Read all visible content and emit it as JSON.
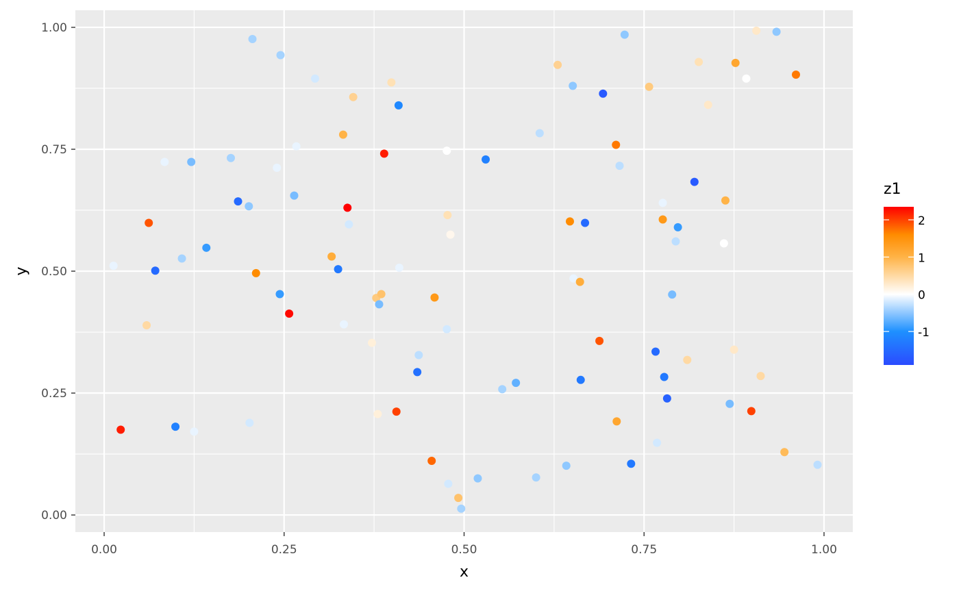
{
  "chart_data": {
    "type": "scatter",
    "xlabel": "x",
    "ylabel": "y",
    "xlim": [
      -0.04,
      1.04
    ],
    "ylim": [
      -0.035,
      1.035
    ],
    "x_ticks": [
      0,
      0.25,
      0.5,
      0.75,
      1
    ],
    "x_tick_labels": [
      "0.00",
      "0.25",
      "0.50",
      "0.75",
      "1.00"
    ],
    "y_ticks": [
      0,
      0.25,
      0.5,
      0.75,
      1
    ],
    "y_tick_labels": [
      "0.00",
      "0.25",
      "0.50",
      "0.75",
      "1.00"
    ],
    "grid": true,
    "panel_background": "#ebebeb",
    "grid_color": "#ffffff",
    "legend": {
      "title": "z1",
      "position": "right",
      "range": [
        -1.9,
        2.35
      ],
      "breaks": [
        2,
        1,
        0,
        -1
      ],
      "labels": [
        "2",
        "1",
        "0",
        "-1"
      ],
      "color_stops": [
        {
          "value": -1.9,
          "color": "#2b4bff"
        },
        {
          "value": -1.0,
          "color": "#1e90ff"
        },
        {
          "value": 0.0,
          "color": "#ffffff"
        },
        {
          "value": 1.0,
          "color": "#ffb347"
        },
        {
          "value": 1.6,
          "color": "#ff8c00"
        },
        {
          "value": 2.35,
          "color": "#ff0000"
        }
      ]
    },
    "points": [
      {
        "x": 0.013,
        "y": 0.511,
        "z": -0.1
      },
      {
        "x": 0.023,
        "y": 0.175,
        "z": 2.2
      },
      {
        "x": 0.059,
        "y": 0.389,
        "z": 0.5
      },
      {
        "x": 0.062,
        "y": 0.599,
        "z": 1.9
      },
      {
        "x": 0.071,
        "y": 0.501,
        "z": -1.5
      },
      {
        "x": 0.084,
        "y": 0.724,
        "z": -0.1
      },
      {
        "x": 0.099,
        "y": 0.181,
        "z": -1.2
      },
      {
        "x": 0.108,
        "y": 0.526,
        "z": -0.4
      },
      {
        "x": 0.121,
        "y": 0.724,
        "z": -0.6
      },
      {
        "x": 0.125,
        "y": 0.171,
        "z": -0.1
      },
      {
        "x": 0.142,
        "y": 0.548,
        "z": -0.9
      },
      {
        "x": 0.176,
        "y": 0.732,
        "z": -0.4
      },
      {
        "x": 0.186,
        "y": 0.643,
        "z": -1.5
      },
      {
        "x": 0.201,
        "y": 0.633,
        "z": -0.5
      },
      {
        "x": 0.202,
        "y": 0.189,
        "z": -0.2
      },
      {
        "x": 0.206,
        "y": 0.976,
        "z": -0.4
      },
      {
        "x": 0.211,
        "y": 0.496,
        "z": 1.6
      },
      {
        "x": 0.24,
        "y": 0.712,
        "z": -0.1
      },
      {
        "x": 0.244,
        "y": 0.453,
        "z": -0.9
      },
      {
        "x": 0.245,
        "y": 0.943,
        "z": -0.4
      },
      {
        "x": 0.257,
        "y": 0.413,
        "z": 2.3
      },
      {
        "x": 0.264,
        "y": 0.655,
        "z": -0.6
      },
      {
        "x": 0.267,
        "y": 0.756,
        "z": -0.1
      },
      {
        "x": 0.293,
        "y": 0.895,
        "z": -0.2
      },
      {
        "x": 0.316,
        "y": 0.53,
        "z": 1.1
      },
      {
        "x": 0.325,
        "y": 0.504,
        "z": -1.3
      },
      {
        "x": 0.332,
        "y": 0.78,
        "z": 1.0
      },
      {
        "x": 0.333,
        "y": 0.391,
        "z": -0.1
      },
      {
        "x": 0.338,
        "y": 0.63,
        "z": 2.35
      },
      {
        "x": 0.34,
        "y": 0.596,
        "z": -0.2
      },
      {
        "x": 0.346,
        "y": 0.857,
        "z": 0.6
      },
      {
        "x": 0.372,
        "y": 0.353,
        "z": 0.2
      },
      {
        "x": 0.378,
        "y": 0.445,
        "z": 0.7
      },
      {
        "x": 0.38,
        "y": 0.207,
        "z": 0.2
      },
      {
        "x": 0.382,
        "y": 0.432,
        "z": -0.6
      },
      {
        "x": 0.385,
        "y": 0.453,
        "z": 0.8
      },
      {
        "x": 0.389,
        "y": 0.741,
        "z": 2.2
      },
      {
        "x": 0.399,
        "y": 0.887,
        "z": 0.4
      },
      {
        "x": 0.406,
        "y": 0.212,
        "z": 2.0
      },
      {
        "x": 0.409,
        "y": 0.84,
        "z": -1.1
      },
      {
        "x": 0.41,
        "y": 0.507,
        "z": -0.1
      },
      {
        "x": 0.435,
        "y": 0.293,
        "z": -1.4
      },
      {
        "x": 0.437,
        "y": 0.328,
        "z": -0.3
      },
      {
        "x": 0.455,
        "y": 0.111,
        "z": 1.8
      },
      {
        "x": 0.459,
        "y": 0.446,
        "z": 1.4
      },
      {
        "x": 0.476,
        "y": 0.747,
        "z": 0.0
      },
      {
        "x": 0.476,
        "y": 0.381,
        "z": -0.2
      },
      {
        "x": 0.477,
        "y": 0.615,
        "z": 0.4
      },
      {
        "x": 0.478,
        "y": 0.064,
        "z": -0.2
      },
      {
        "x": 0.481,
        "y": 0.575,
        "z": 0.1
      },
      {
        "x": 0.492,
        "y": 0.035,
        "z": 0.8
      },
      {
        "x": 0.496,
        "y": 0.013,
        "z": -0.4
      },
      {
        "x": 0.519,
        "y": 0.075,
        "z": -0.5
      },
      {
        "x": 0.53,
        "y": 0.729,
        "z": -1.2
      },
      {
        "x": 0.553,
        "y": 0.258,
        "z": -0.4
      },
      {
        "x": 0.572,
        "y": 0.271,
        "z": -0.7
      },
      {
        "x": 0.6,
        "y": 0.077,
        "z": -0.4
      },
      {
        "x": 0.605,
        "y": 0.783,
        "z": -0.3
      },
      {
        "x": 0.63,
        "y": 0.923,
        "z": 0.6
      },
      {
        "x": 0.642,
        "y": 0.101,
        "z": -0.5
      },
      {
        "x": 0.647,
        "y": 0.602,
        "z": 1.6
      },
      {
        "x": 0.651,
        "y": 0.88,
        "z": -0.5
      },
      {
        "x": 0.652,
        "y": 0.485,
        "z": -0.1
      },
      {
        "x": 0.661,
        "y": 0.478,
        "z": 1.1
      },
      {
        "x": 0.662,
        "y": 0.277,
        "z": -1.3
      },
      {
        "x": 0.668,
        "y": 0.599,
        "z": -1.5
      },
      {
        "x": 0.688,
        "y": 0.357,
        "z": 1.9
      },
      {
        "x": 0.693,
        "y": 0.864,
        "z": -1.7
      },
      {
        "x": 0.711,
        "y": 0.759,
        "z": 1.7
      },
      {
        "x": 0.712,
        "y": 0.192,
        "z": 1.2
      },
      {
        "x": 0.716,
        "y": 0.716,
        "z": -0.3
      },
      {
        "x": 0.723,
        "y": 0.985,
        "z": -0.5
      },
      {
        "x": 0.732,
        "y": 0.105,
        "z": -1.3
      },
      {
        "x": 0.757,
        "y": 0.878,
        "z": 0.7
      },
      {
        "x": 0.766,
        "y": 0.335,
        "z": -1.5
      },
      {
        "x": 0.768,
        "y": 0.148,
        "z": -0.2
      },
      {
        "x": 0.776,
        "y": 0.606,
        "z": 1.4
      },
      {
        "x": 0.776,
        "y": 0.64,
        "z": -0.1
      },
      {
        "x": 0.778,
        "y": 0.283,
        "z": -1.3
      },
      {
        "x": 0.782,
        "y": 0.239,
        "z": -1.6
      },
      {
        "x": 0.789,
        "y": 0.452,
        "z": -0.6
      },
      {
        "x": 0.794,
        "y": 0.561,
        "z": -0.3
      },
      {
        "x": 0.797,
        "y": 0.59,
        "z": -0.9
      },
      {
        "x": 0.81,
        "y": 0.318,
        "z": 0.5
      },
      {
        "x": 0.82,
        "y": 0.683,
        "z": -1.7
      },
      {
        "x": 0.826,
        "y": 0.929,
        "z": 0.4
      },
      {
        "x": 0.839,
        "y": 0.841,
        "z": 0.3
      },
      {
        "x": 0.861,
        "y": 0.557,
        "z": 0.0
      },
      {
        "x": 0.863,
        "y": 0.645,
        "z": 1.0
      },
      {
        "x": 0.869,
        "y": 0.228,
        "z": -0.6
      },
      {
        "x": 0.875,
        "y": 0.339,
        "z": 0.3
      },
      {
        "x": 0.877,
        "y": 0.927,
        "z": 1.2
      },
      {
        "x": 0.892,
        "y": 0.895,
        "z": 0.0
      },
      {
        "x": 0.899,
        "y": 0.213,
        "z": 2.0
      },
      {
        "x": 0.906,
        "y": 0.993,
        "z": 0.3
      },
      {
        "x": 0.912,
        "y": 0.285,
        "z": 0.5
      },
      {
        "x": 0.934,
        "y": 0.991,
        "z": -0.5
      },
      {
        "x": 0.945,
        "y": 0.129,
        "z": 0.9
      },
      {
        "x": 0.961,
        "y": 0.903,
        "z": 1.7
      },
      {
        "x": 0.991,
        "y": 0.103,
        "z": -0.3
      }
    ]
  }
}
